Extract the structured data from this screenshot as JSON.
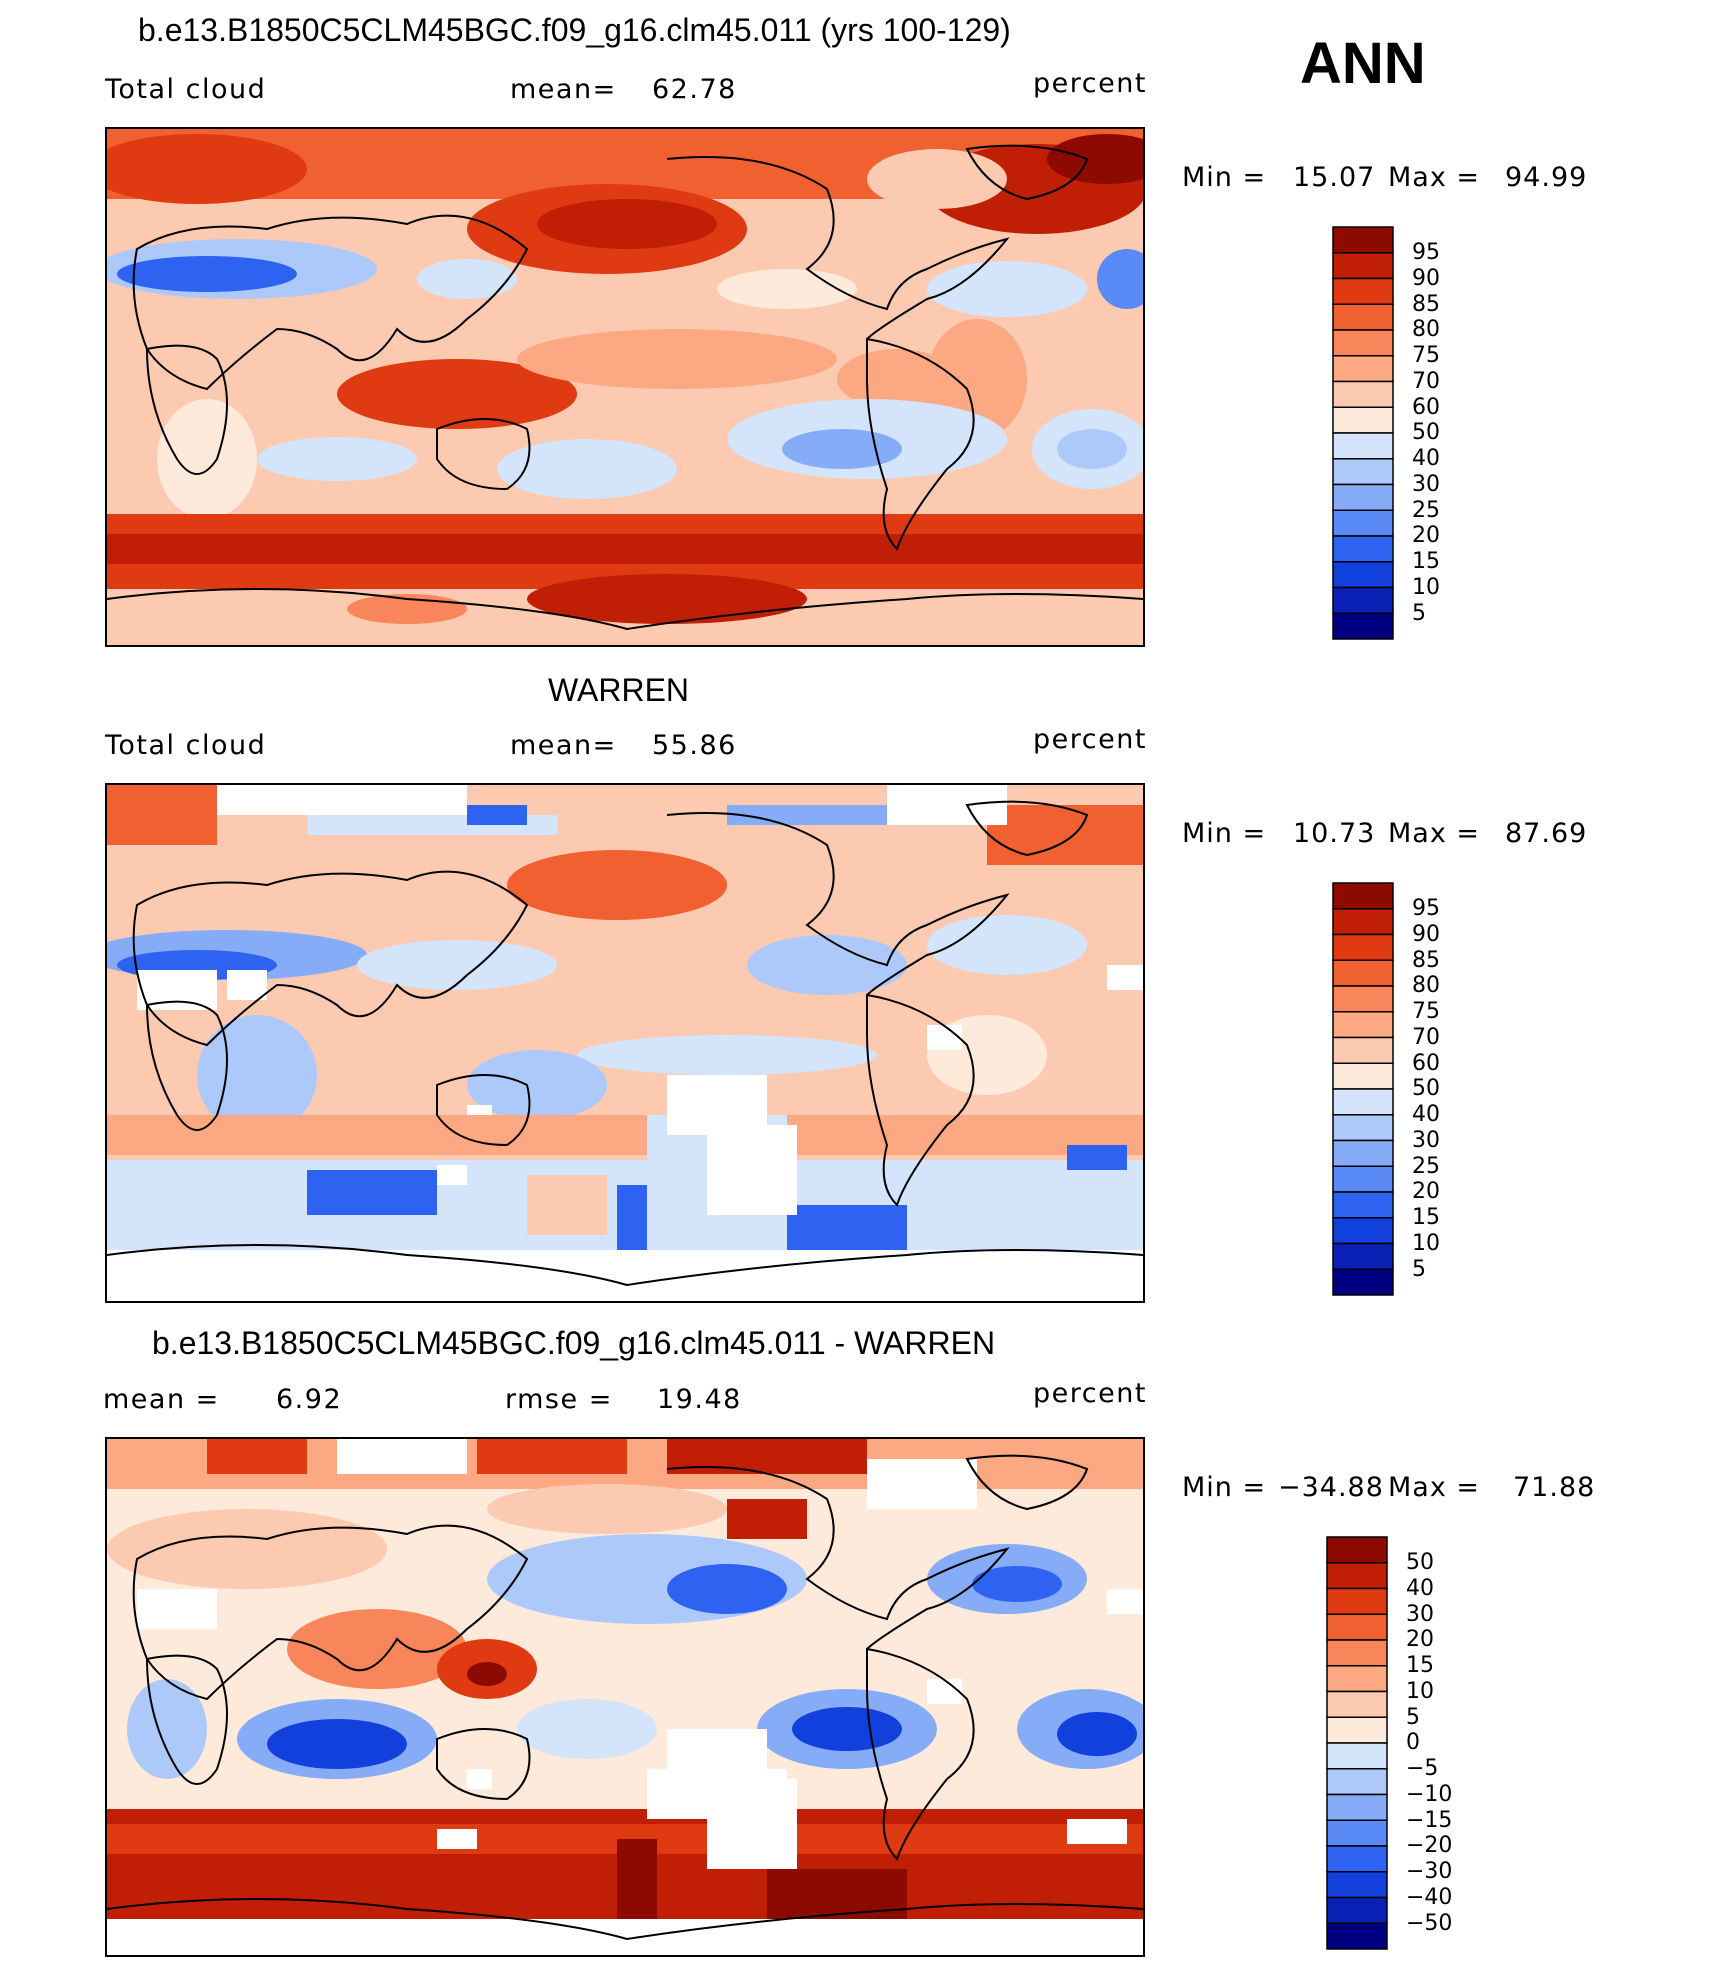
{
  "season": "ANN",
  "palette_model": [
    "#000080",
    "#0a1fb4",
    "#1240dc",
    "#2e62f0",
    "#5a8af5",
    "#86acf7",
    "#adc9fa",
    "#d4e4fb",
    "#fdeadb",
    "#fccab0",
    "#fca882",
    "#f9855a",
    "#f06030",
    "#e03a12",
    "#c01e05",
    "#8c0a00"
  ],
  "palette_diff": [
    "#000080",
    "#0a1fb4",
    "#1240dc",
    "#2e62f0",
    "#5a8af5",
    "#86acf7",
    "#adc9fa",
    "#d4e4fb",
    "#fdeadb",
    "#fccab0",
    "#fca882",
    "#f9855a",
    "#f06030",
    "#e03a12",
    "#c01e05",
    "#8c0a00"
  ],
  "panels": [
    {
      "title": "b.e13.B1850C5CLM45BGC.f09_g16.clm45.011 (yrs 100-129)",
      "left_label": "Total cloud",
      "mean_label": "mean=",
      "mean_value": "62.78",
      "units": "percent",
      "min_label": "Min  =",
      "min_value": "15.07",
      "max_label": "Max  =",
      "max_value": "94.99",
      "colorbar_labels": [
        "95",
        "90",
        "85",
        "80",
        "75",
        "70",
        "60",
        "50",
        "40",
        "30",
        "25",
        "20",
        "15",
        "10",
        "5"
      ]
    },
    {
      "title": "WARREN",
      "left_label": "Total cloud",
      "mean_label": "mean=",
      "mean_value": "55.86",
      "units": "percent",
      "min_label": "Min  =",
      "min_value": "10.73",
      "max_label": "Max  =",
      "max_value": "87.69",
      "colorbar_labels": [
        "95",
        "90",
        "85",
        "80",
        "75",
        "70",
        "60",
        "50",
        "40",
        "30",
        "25",
        "20",
        "15",
        "10",
        "5"
      ]
    },
    {
      "title": "b.e13.B1850C5CLM45BGC.f09_g16.clm45.011 - WARREN",
      "left_label": "mean  =",
      "mean_label": "6.92",
      "rmse_label": "rmse  =",
      "rmse_value": "19.48",
      "units": "percent",
      "min_label": "Min  =",
      "min_value": "−34.88",
      "max_label": "Max  =",
      "max_value": "71.88",
      "colorbar_labels": [
        "50",
        "40",
        "30",
        "20",
        "15",
        "10",
        "5",
        "0",
        "−5",
        "−10",
        "−15",
        "−20",
        "−30",
        "−40",
        "−50"
      ]
    }
  ]
}
